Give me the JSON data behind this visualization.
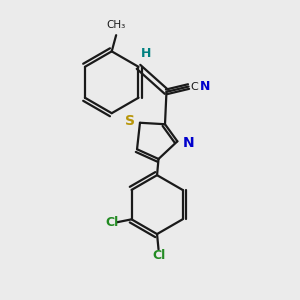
{
  "bg_color": "#ebebeb",
  "bond_color": "#1a1a1a",
  "bond_width": 1.6,
  "S_color": "#b8960a",
  "N_color": "#0000cc",
  "Cl_color": "#228B22",
  "H_color": "#008080",
  "C_color": "#1a1a1a",
  "figsize": [
    3.0,
    3.0
  ],
  "dpi": 100,
  "xlim": [
    0,
    10
  ],
  "ylim": [
    0,
    10
  ]
}
